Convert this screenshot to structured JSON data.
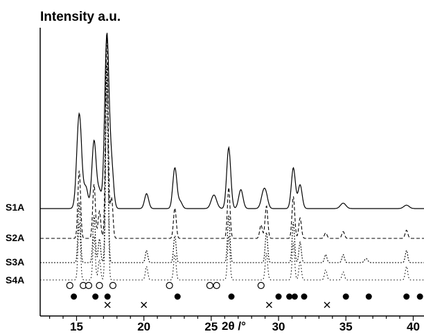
{
  "chart_data": {
    "type": "line",
    "title": "Intensity a.u.",
    "xlabel": "2θ /°",
    "ylabel": "",
    "xlim": [
      12.3,
      40.8
    ],
    "x_ticks": [
      15,
      20,
      25,
      30,
      35,
      40
    ],
    "x_tick_labels": [
      "15",
      "20",
      "25",
      "30",
      "35",
      "40"
    ],
    "grid": false,
    "legend": "none",
    "series": [
      {
        "name": "S1A",
        "style": "solid",
        "baseline": 0,
        "peaks": [
          [
            15.2,
            140,
            0.18
          ],
          [
            15.7,
            30,
            0.15
          ],
          [
            16.3,
            100,
            0.16
          ],
          [
            16.7,
            25,
            0.15
          ],
          [
            17.25,
            255,
            0.16
          ],
          [
            17.6,
            60,
            0.15
          ],
          [
            20.2,
            22,
            0.15
          ],
          [
            22.3,
            60,
            0.15
          ],
          [
            22.7,
            10,
            0.15
          ],
          [
            25.2,
            20,
            0.2
          ],
          [
            26.3,
            90,
            0.15
          ],
          [
            27.2,
            28,
            0.16
          ],
          [
            28.9,
            25,
            0.18
          ],
          [
            29.1,
            10,
            0.15
          ],
          [
            31.1,
            60,
            0.15
          ],
          [
            31.6,
            35,
            0.15
          ],
          [
            34.8,
            8,
            0.2
          ],
          [
            39.5,
            5,
            0.2
          ]
        ]
      },
      {
        "name": "S2A",
        "style": "dashed",
        "baseline": 0,
        "peaks": [
          [
            15.2,
            100,
            0.1
          ],
          [
            16.3,
            80,
            0.1
          ],
          [
            16.7,
            40,
            0.1
          ],
          [
            17.25,
            300,
            0.1
          ],
          [
            17.6,
            60,
            0.1
          ],
          [
            22.3,
            45,
            0.1
          ],
          [
            26.3,
            75,
            0.1
          ],
          [
            28.7,
            20,
            0.1
          ],
          [
            29.1,
            48,
            0.1
          ],
          [
            31.1,
            62,
            0.1
          ],
          [
            31.6,
            30,
            0.1
          ],
          [
            33.5,
            8,
            0.1
          ],
          [
            34.8,
            10,
            0.1
          ],
          [
            39.5,
            12,
            0.1
          ]
        ]
      },
      {
        "name": "S3A",
        "style": "dotted-dense",
        "baseline": 0,
        "peaks": [
          [
            15.2,
            90,
            0.09
          ],
          [
            16.3,
            70,
            0.09
          ],
          [
            16.7,
            35,
            0.09
          ],
          [
            17.25,
            300,
            0.09
          ],
          [
            20.2,
            18,
            0.09
          ],
          [
            22.3,
            40,
            0.09
          ],
          [
            26.3,
            70,
            0.09
          ],
          [
            29.1,
            45,
            0.09
          ],
          [
            31.1,
            60,
            0.09
          ],
          [
            31.6,
            30,
            0.09
          ],
          [
            33.5,
            12,
            0.09
          ],
          [
            34.8,
            12,
            0.09
          ],
          [
            36.5,
            6,
            0.12
          ],
          [
            39.5,
            18,
            0.09
          ]
        ]
      },
      {
        "name": "S4A",
        "style": "dotted",
        "baseline": 0,
        "peaks": [
          [
            15.2,
            85,
            0.09
          ],
          [
            16.3,
            65,
            0.09
          ],
          [
            16.7,
            30,
            0.09
          ],
          [
            17.25,
            300,
            0.09
          ],
          [
            20.2,
            20,
            0.09
          ],
          [
            22.3,
            38,
            0.09
          ],
          [
            26.3,
            65,
            0.09
          ],
          [
            29.1,
            40,
            0.09
          ],
          [
            31.1,
            55,
            0.09
          ],
          [
            31.6,
            28,
            0.09
          ],
          [
            33.5,
            15,
            0.09
          ],
          [
            34.8,
            12,
            0.09
          ],
          [
            39.5,
            20,
            0.09
          ]
        ]
      }
    ],
    "markers": [
      {
        "symbol": "open-circle",
        "x": [
          14.5,
          15.5,
          15.9,
          16.7,
          17.7,
          21.9,
          24.9,
          25.4,
          28.7
        ]
      },
      {
        "symbol": "filled-circle",
        "x": [
          14.8,
          16.4,
          17.3,
          22.5,
          26.5,
          30.0,
          30.8,
          31.2,
          31.9,
          35.0,
          36.7,
          39.5,
          40.5
        ]
      },
      {
        "symbol": "cross",
        "x": [
          17.3,
          20.0,
          29.3,
          33.6
        ]
      }
    ]
  }
}
